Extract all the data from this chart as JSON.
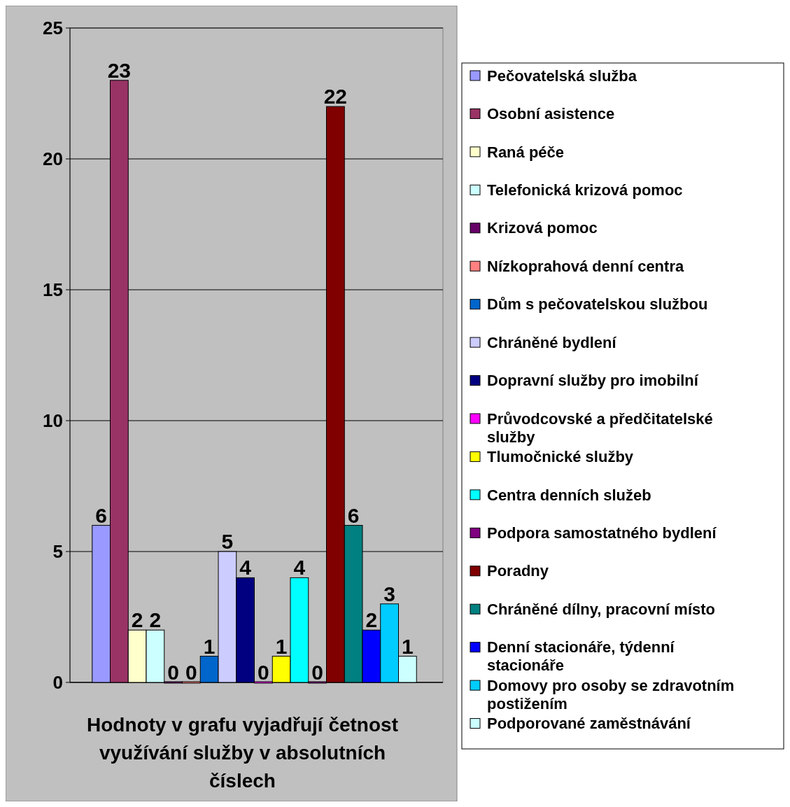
{
  "chart_data": {
    "type": "bar",
    "xlabel": "Hodnoty v grafu vyjadřují četnost využívání služby v absolutních číslech",
    "categories": [
      null
    ],
    "series": [
      {
        "name": "Pečovatelská služba",
        "color": "#9999ff",
        "values": [
          6
        ]
      },
      {
        "name": "Osobní asistence",
        "color": "#993366",
        "values": [
          23
        ]
      },
      {
        "name": "Raná péče",
        "color": "#ffffcc",
        "values": [
          2
        ]
      },
      {
        "name": "Telefonická krizová pomoc",
        "color": "#ccffff",
        "values": [
          2
        ]
      },
      {
        "name": "Krizová pomoc",
        "color": "#660066",
        "values": [
          0
        ]
      },
      {
        "name": "Nízkoprahová denní centra",
        "color": "#ff8080",
        "values": [
          0
        ]
      },
      {
        "name": "Dům s pečovatelskou službou",
        "color": "#0066cc",
        "values": [
          1
        ]
      },
      {
        "name": "Chráněné bydlení",
        "color": "#ccccff",
        "values": [
          5
        ]
      },
      {
        "name": "Dopravní služby pro imobilní",
        "color": "#000080",
        "values": [
          4
        ]
      },
      {
        "name": "Průvodcovské a předčitatelské služby",
        "color": "#ff00ff",
        "values": [
          0
        ]
      },
      {
        "name": "Tlumočnické služby",
        "color": "#ffff00",
        "values": [
          1
        ]
      },
      {
        "name": "Centra denních služeb",
        "color": "#00ffff",
        "values": [
          4
        ]
      },
      {
        "name": "Podpora samostatného bydlení",
        "color": "#800080",
        "values": [
          0
        ]
      },
      {
        "name": "Poradny",
        "color": "#800000",
        "values": [
          22
        ]
      },
      {
        "name": "Chráněné dílny, pracovní místo",
        "color": "#008080",
        "values": [
          6
        ]
      },
      {
        "name": "Denní stacionáře, týdenní stacionáře",
        "color": "#0000ff",
        "values": [
          2
        ]
      },
      {
        "name": "Domovy pro osoby se zdravotním postižením",
        "color": "#00ccff",
        "values": [
          3
        ]
      },
      {
        "name": "Podporované zaměstnávání",
        "color": "#ccffff",
        "values": [
          1
        ]
      }
    ],
    "ylim": [
      0,
      25
    ],
    "yticks": [
      0,
      5,
      10,
      15,
      20,
      25
    ],
    "grid": "y",
    "legend": "right",
    "data_labels": true
  }
}
